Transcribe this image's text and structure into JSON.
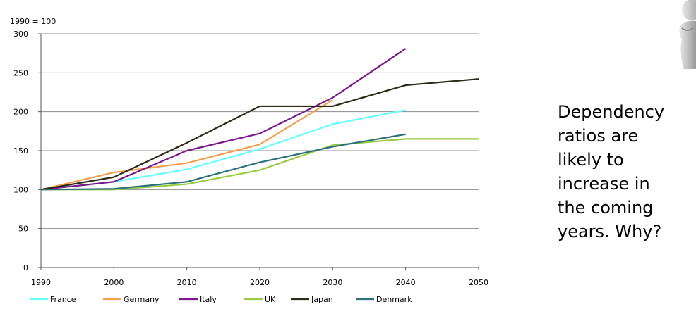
{
  "side_text": {
    "lines": [
      "Dependency",
      "ratios are",
      "likely to",
      "increase in",
      "the coming",
      "years. Why?"
    ]
  },
  "chart_data": {
    "type": "line",
    "title": "",
    "index_label": "1990 = 100",
    "xlabel": "",
    "ylabel": "",
    "x": [
      1990,
      2000,
      2010,
      2020,
      2030,
      2040,
      2050
    ],
    "xlim": [
      1990,
      2050
    ],
    "ylim": [
      0,
      300
    ],
    "yticks": [
      0,
      50,
      100,
      150,
      200,
      250,
      300
    ],
    "grid": true,
    "legend_position": "bottom",
    "series": [
      {
        "name": "France",
        "color": "#66ffff",
        "values": [
          100,
          110,
          126,
          152,
          184,
          202,
          null
        ]
      },
      {
        "name": "Germany",
        "color": "#f0a050",
        "values": [
          100,
          122,
          134,
          158,
          215,
          null,
          null
        ]
      },
      {
        "name": "Italy",
        "color": "#7a1a8a",
        "values": [
          100,
          110,
          150,
          172,
          218,
          281,
          null
        ]
      },
      {
        "name": "UK",
        "color": "#99cc44",
        "values": [
          100,
          100,
          107,
          125,
          157,
          165,
          165
        ]
      },
      {
        "name": "Japan",
        "color": "#2b2b16",
        "values": [
          100,
          116,
          160,
          207,
          207,
          234,
          242
        ]
      },
      {
        "name": "Denmark",
        "color": "#2e6f7a",
        "values": [
          100,
          101,
          110,
          135,
          155,
          171,
          null
        ]
      }
    ]
  }
}
